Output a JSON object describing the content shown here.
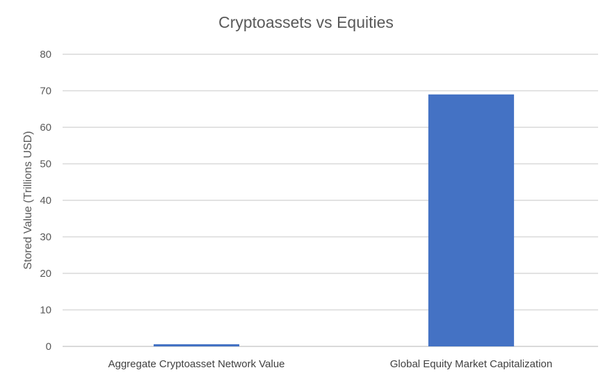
{
  "chart_data": {
    "type": "bar",
    "title": "Cryptoassets vs Equities",
    "xlabel": "",
    "ylabel": "Stored Value (Trillions USD)",
    "categories": [
      "Aggregate Cryptoasset Network Value",
      "Global Equity Market Capitalization"
    ],
    "values": [
      0.6,
      69
    ],
    "ylim": [
      0,
      80
    ],
    "yticks": [
      0,
      10,
      20,
      30,
      40,
      50,
      60,
      70,
      80
    ],
    "grid": true,
    "legend": "none",
    "bar_color": "#4472c4"
  }
}
